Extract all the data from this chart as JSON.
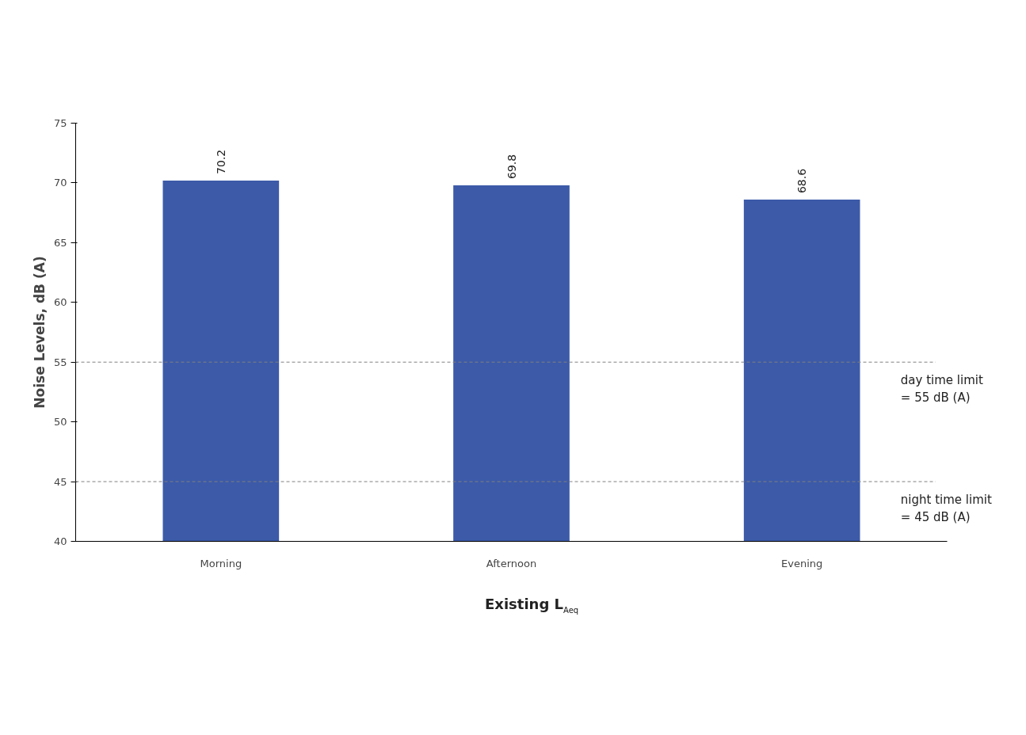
{
  "chart_data": {
    "type": "bar",
    "xlabel": "Existing L$_{Aeq}$",
    "ylabel": "Noise Levels, dB (A)",
    "categories": [
      "Morning",
      "Afternoon",
      "Evening"
    ],
    "values": [
      70.2,
      69.8,
      68.6
    ],
    "color": "#3c5aa8",
    "data_labels": true,
    "ylim": [
      40,
      75
    ],
    "yticks": [
      40,
      45,
      50,
      55,
      60,
      65,
      70,
      75
    ],
    "grid": false,
    "ref_lines": [
      {
        "axis": "y",
        "value": 55,
        "label": "day time limit\n= 55 dB (A)",
        "color": "#808080",
        "line_style": "dashed"
      },
      {
        "axis": "y",
        "value": 45,
        "label": "night time limit\n= 45 dB (A)",
        "color": "#808080",
        "line_style": "dashed"
      }
    ]
  }
}
